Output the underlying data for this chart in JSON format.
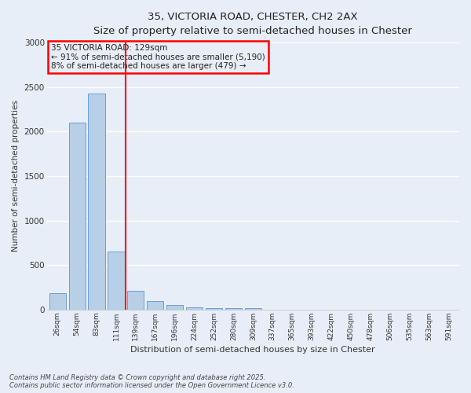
{
  "title_line1": "35, VICTORIA ROAD, CHESTER, CH2 2AX",
  "title_line2": "Size of property relative to semi-detached houses in Chester",
  "xlabel": "Distribution of semi-detached houses by size in Chester",
  "ylabel": "Number of semi-detached properties",
  "categories": [
    "26sqm",
    "54sqm",
    "83sqm",
    "111sqm",
    "139sqm",
    "167sqm",
    "196sqm",
    "224sqm",
    "252sqm",
    "280sqm",
    "309sqm",
    "337sqm",
    "365sqm",
    "393sqm",
    "422sqm",
    "450sqm",
    "478sqm",
    "506sqm",
    "535sqm",
    "563sqm",
    "591sqm"
  ],
  "values": [
    185,
    2100,
    2430,
    650,
    215,
    95,
    50,
    30,
    20,
    20,
    15,
    0,
    0,
    0,
    0,
    0,
    0,
    0,
    0,
    0,
    0
  ],
  "bar_color": "#b8cfe8",
  "bar_edge_color": "#6a9fd4",
  "red_line_x": 3.5,
  "annotation_text_line1": "35 VICTORIA ROAD: 129sqm",
  "annotation_text_line2": "← 91% of semi-detached houses are smaller (5,190)",
  "annotation_text_line3": "8% of semi-detached houses are larger (479) →",
  "ylim": [
    0,
    3000
  ],
  "yticks": [
    0,
    500,
    1000,
    1500,
    2000,
    2500,
    3000
  ],
  "background_color": "#e8eef7",
  "grid_color": "#ffffff",
  "footer_line1": "Contains HM Land Registry data © Crown copyright and database right 2025.",
  "footer_line2": "Contains public sector information licensed under the Open Government Licence v3.0."
}
